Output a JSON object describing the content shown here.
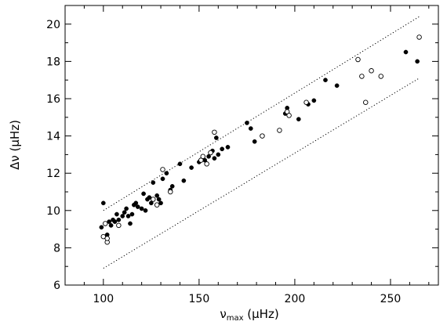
{
  "chart_data": {
    "type": "scatter",
    "xlabel": "νmax (μHz)",
    "ylabel": "Δν (μHz)",
    "xlabel_parts": {
      "nu": "ν",
      "sub": "max",
      "unit": "(μHz)"
    },
    "ylabel_parts": {
      "delta": "Δν",
      "unit": "(μHz)"
    },
    "xlim": [
      80,
      275
    ],
    "ylim": [
      6,
      21
    ],
    "xticks": [
      100,
      150,
      200,
      250
    ],
    "yticks": [
      6,
      8,
      10,
      12,
      14,
      16,
      18,
      20
    ],
    "grid": false,
    "series": [
      {
        "marker": "filled-circle",
        "color": "#000000",
        "points": [
          [
            99,
            9.1
          ],
          [
            100,
            10.4
          ],
          [
            101,
            9.3
          ],
          [
            102,
            8.7
          ],
          [
            103,
            9.4
          ],
          [
            104,
            9.2
          ],
          [
            105,
            9.5
          ],
          [
            106,
            9.4
          ],
          [
            107,
            9.8
          ],
          [
            108,
            9.5
          ],
          [
            110,
            9.7
          ],
          [
            111,
            9.9
          ],
          [
            112,
            10.1
          ],
          [
            113,
            9.7
          ],
          [
            114,
            9.3
          ],
          [
            115,
            9.8
          ],
          [
            116,
            10.3
          ],
          [
            117,
            10.4
          ],
          [
            118,
            10.2
          ],
          [
            120,
            10.1
          ],
          [
            121,
            10.9
          ],
          [
            122,
            10.0
          ],
          [
            123,
            10.6
          ],
          [
            124,
            10.7
          ],
          [
            125,
            10.4
          ],
          [
            126,
            11.5
          ],
          [
            128,
            10.8
          ],
          [
            129,
            10.6
          ],
          [
            130,
            10.4
          ],
          [
            131,
            11.7
          ],
          [
            133,
            12.0
          ],
          [
            135,
            11.1
          ],
          [
            136,
            11.3
          ],
          [
            140,
            12.5
          ],
          [
            142,
            11.6
          ],
          [
            146,
            12.3
          ],
          [
            150,
            12.6
          ],
          [
            153,
            12.7
          ],
          [
            155,
            12.9
          ],
          [
            157,
            13.2
          ],
          [
            158,
            12.8
          ],
          [
            159,
            13.9
          ],
          [
            160,
            13.0
          ],
          [
            162,
            13.3
          ],
          [
            165,
            13.4
          ],
          [
            175,
            14.7
          ],
          [
            177,
            14.4
          ],
          [
            179,
            13.7
          ],
          [
            195,
            15.2
          ],
          [
            196,
            15.5
          ],
          [
            202,
            14.9
          ],
          [
            207,
            15.7
          ],
          [
            210,
            15.9
          ],
          [
            216,
            17.0
          ],
          [
            222,
            16.7
          ],
          [
            258,
            18.5
          ],
          [
            264,
            18.0
          ]
        ]
      },
      {
        "marker": "open-circle",
        "color": "#000000",
        "points": [
          [
            100,
            8.6
          ],
          [
            101,
            9.3
          ],
          [
            102,
            8.3
          ],
          [
            102,
            8.5
          ],
          [
            108,
            9.2
          ],
          [
            126,
            10.6
          ],
          [
            128,
            10.3
          ],
          [
            131,
            12.2
          ],
          [
            135,
            11.0
          ],
          [
            151,
            12.7
          ],
          [
            152,
            12.9
          ],
          [
            154,
            12.5
          ],
          [
            156,
            13.1
          ],
          [
            158,
            14.2
          ],
          [
            183,
            14.0
          ],
          [
            192,
            14.3
          ],
          [
            196,
            15.3
          ],
          [
            197,
            15.1
          ],
          [
            206,
            15.8
          ],
          [
            233,
            18.1
          ],
          [
            235,
            17.2
          ],
          [
            237,
            15.8
          ],
          [
            240,
            17.5
          ],
          [
            245,
            17.2
          ],
          [
            265,
            19.3
          ]
        ]
      }
    ],
    "bounds": [
      {
        "style": "dotted",
        "points": [
          [
            100,
            10.0
          ],
          [
            265,
            20.4
          ]
        ]
      },
      {
        "style": "dotted",
        "points": [
          [
            100,
            6.9
          ],
          [
            265,
            17.1
          ]
        ]
      }
    ]
  }
}
